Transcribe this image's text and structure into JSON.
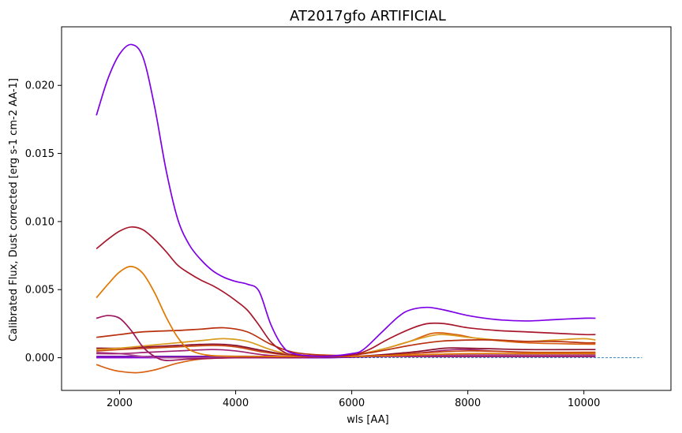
{
  "chart_data": {
    "type": "line",
    "title": "AT2017gfo ARTIFICIAL",
    "xlabel": "wls [AA]",
    "ylabel": "Calibrated Flux, Dust corrected [erg s-1 cm-2 AA-1]",
    "xlim": [
      1000,
      11500
    ],
    "ylim": [
      -0.0024,
      0.0243
    ],
    "xticks": [
      2000,
      4000,
      6000,
      8000,
      10000
    ],
    "yticks": [
      0.0,
      0.005,
      0.01,
      0.015,
      0.02
    ],
    "xtick_labels": [
      "2000",
      "4000",
      "6000",
      "8000",
      "10000"
    ],
    "ytick_labels": [
      "0.000",
      "0.005",
      "0.010",
      "0.015",
      "0.020"
    ],
    "grid": false,
    "legend": "none",
    "reference_line": {
      "y": 0.0,
      "x_range": [
        1600,
        11000
      ],
      "style": "dashed",
      "color": "#1f77b4"
    },
    "series": [
      {
        "color": "#7e00e6",
        "points": [
          [
            1600,
            0.0178
          ],
          [
            1800,
            0.0205
          ],
          [
            2000,
            0.0223
          ],
          [
            2200,
            0.023
          ],
          [
            2400,
            0.0221
          ],
          [
            2600,
            0.0185
          ],
          [
            2800,
            0.0138
          ],
          [
            3000,
            0.0102
          ],
          [
            3200,
            0.0083
          ],
          [
            3400,
            0.0072
          ],
          [
            3600,
            0.0064
          ],
          [
            3800,
            0.0059
          ],
          [
            4000,
            0.0056
          ],
          [
            4200,
            0.0054
          ],
          [
            4400,
            0.0049
          ],
          [
            4600,
            0.0025
          ],
          [
            4800,
            0.0009
          ],
          [
            5000,
            0.0003
          ],
          [
            5500,
            0.0001
          ],
          [
            6000,
            0.0003
          ],
          [
            6200,
            0.0006
          ],
          [
            6500,
            0.0018
          ],
          [
            6800,
            0.003
          ],
          [
            7000,
            0.0035
          ],
          [
            7300,
            0.0037
          ],
          [
            7600,
            0.0035
          ],
          [
            8000,
            0.0031
          ],
          [
            8500,
            0.0028
          ],
          [
            9000,
            0.0027
          ],
          [
            9500,
            0.0028
          ],
          [
            10000,
            0.0029
          ],
          [
            10200,
            0.0029
          ]
        ]
      },
      {
        "color": "#a8182c",
        "points": [
          [
            1600,
            0.008
          ],
          [
            1800,
            0.0087
          ],
          [
            2000,
            0.0093
          ],
          [
            2200,
            0.0096
          ],
          [
            2400,
            0.0094
          ],
          [
            2600,
            0.0087
          ],
          [
            2800,
            0.0078
          ],
          [
            3000,
            0.0068
          ],
          [
            3200,
            0.0062
          ],
          [
            3400,
            0.0057
          ],
          [
            3600,
            0.0053
          ],
          [
            3800,
            0.0048
          ],
          [
            4000,
            0.0042
          ],
          [
            4200,
            0.0035
          ],
          [
            4400,
            0.0024
          ],
          [
            4600,
            0.0012
          ],
          [
            4800,
            0.0005
          ],
          [
            5000,
            0.0002
          ],
          [
            5500,
            0.0001
          ],
          [
            6000,
            0.0002
          ],
          [
            6300,
            0.0006
          ],
          [
            6600,
            0.0013
          ],
          [
            7000,
            0.0021
          ],
          [
            7300,
            0.0025
          ],
          [
            7600,
            0.0025
          ],
          [
            8000,
            0.0022
          ],
          [
            8500,
            0.002
          ],
          [
            9000,
            0.0019
          ],
          [
            9500,
            0.0018
          ],
          [
            10000,
            0.0017
          ],
          [
            10200,
            0.0017
          ]
        ]
      },
      {
        "color": "#e07800",
        "points": [
          [
            1600,
            0.0044
          ],
          [
            1800,
            0.0054
          ],
          [
            2000,
            0.0063
          ],
          [
            2200,
            0.0067
          ],
          [
            2400,
            0.0062
          ],
          [
            2600,
            0.0048
          ],
          [
            2800,
            0.003
          ],
          [
            3000,
            0.0015
          ],
          [
            3200,
            0.0006
          ],
          [
            3500,
            0.0002
          ],
          [
            4000,
            0.0001
          ],
          [
            5000,
            0.0001
          ],
          [
            6000,
            0.0001
          ],
          [
            7000,
            0.0002
          ],
          [
            8000,
            0.0003
          ],
          [
            9000,
            0.0003
          ],
          [
            10200,
            0.0003
          ]
        ]
      },
      {
        "color": "#9c1660",
        "points": [
          [
            1600,
            0.0029
          ],
          [
            1800,
            0.0031
          ],
          [
            2000,
            0.0029
          ],
          [
            2200,
            0.002
          ],
          [
            2400,
            0.0008
          ],
          [
            2600,
            0.0001
          ],
          [
            2800,
            -0.0002
          ],
          [
            3200,
            -0.0001
          ],
          [
            4000,
            0.0
          ],
          [
            5000,
            0.0
          ],
          [
            6000,
            0.0001
          ],
          [
            7000,
            0.0001
          ],
          [
            8000,
            0.0001
          ],
          [
            9000,
            0.0001
          ],
          [
            10200,
            0.0001
          ]
        ]
      },
      {
        "color": "#b8300e",
        "points": [
          [
            1600,
            0.0015
          ],
          [
            2000,
            0.0017
          ],
          [
            2400,
            0.0019
          ],
          [
            3000,
            0.002
          ],
          [
            3400,
            0.0021
          ],
          [
            3800,
            0.0022
          ],
          [
            4200,
            0.0019
          ],
          [
            4600,
            0.001
          ],
          [
            5000,
            0.0004
          ],
          [
            5500,
            0.0002
          ],
          [
            6000,
            0.0002
          ],
          [
            6500,
            0.0005
          ],
          [
            7000,
            0.0009
          ],
          [
            7500,
            0.0012
          ],
          [
            8000,
            0.0013
          ],
          [
            8500,
            0.0013
          ],
          [
            9000,
            0.0012
          ],
          [
            9500,
            0.0012
          ],
          [
            10000,
            0.0011
          ],
          [
            10200,
            0.0011
          ]
        ]
      },
      {
        "color": "#d99a1e",
        "points": [
          [
            1600,
            0.0006
          ],
          [
            2000,
            0.0007
          ],
          [
            2500,
            0.0009
          ],
          [
            3000,
            0.0011
          ],
          [
            3500,
            0.0013
          ],
          [
            3800,
            0.0014
          ],
          [
            4200,
            0.0012
          ],
          [
            4600,
            0.0006
          ],
          [
            5000,
            0.0002
          ],
          [
            5500,
            0.0001
          ],
          [
            6000,
            0.0002
          ],
          [
            6500,
            0.0006
          ],
          [
            7000,
            0.0012
          ],
          [
            7500,
            0.0017
          ],
          [
            8000,
            0.0015
          ],
          [
            8500,
            0.0013
          ],
          [
            9000,
            0.0012
          ],
          [
            9500,
            0.0013
          ],
          [
            10000,
            0.0014
          ],
          [
            10200,
            0.0013
          ]
        ]
      },
      {
        "color": "#d86010",
        "points": [
          [
            1600,
            -0.0005
          ],
          [
            1800,
            -0.0008
          ],
          [
            2000,
            -0.001
          ],
          [
            2300,
            -0.0011
          ],
          [
            2600,
            -0.0009
          ],
          [
            3000,
            -0.0004
          ],
          [
            3400,
            -0.0001
          ],
          [
            4000,
            0.0
          ],
          [
            5000,
            0.0001
          ],
          [
            6000,
            0.0002
          ],
          [
            6500,
            0.0006
          ],
          [
            7000,
            0.0012
          ],
          [
            7400,
            0.0018
          ],
          [
            7800,
            0.0017
          ],
          [
            8200,
            0.0014
          ],
          [
            9000,
            0.0011
          ],
          [
            10000,
            0.001
          ],
          [
            10200,
            0.001
          ]
        ]
      },
      {
        "color": "#8a1030",
        "points": [
          [
            1600,
            0.0007
          ],
          [
            2000,
            0.0007
          ],
          [
            2500,
            0.0008
          ],
          [
            3000,
            0.0009
          ],
          [
            3600,
            0.001
          ],
          [
            4000,
            0.0009
          ],
          [
            4500,
            0.0005
          ],
          [
            5000,
            0.0002
          ],
          [
            6000,
            0.0001
          ],
          [
            7000,
            0.0004
          ],
          [
            7600,
            0.0007
          ],
          [
            8000,
            0.0007
          ],
          [
            9000,
            0.0006
          ],
          [
            10000,
            0.0006
          ],
          [
            10200,
            0.0006
          ]
        ]
      },
      {
        "color": "#c84a12",
        "points": [
          [
            1600,
            0.0005
          ],
          [
            2000,
            0.0006
          ],
          [
            2500,
            0.0007
          ],
          [
            3000,
            0.0008
          ],
          [
            3600,
            0.0009
          ],
          [
            4000,
            0.0008
          ],
          [
            4500,
            0.0004
          ],
          [
            5000,
            0.0002
          ],
          [
            6000,
            0.0001
          ],
          [
            7000,
            0.0003
          ],
          [
            8000,
            0.0005
          ],
          [
            9000,
            0.0004
          ],
          [
            10000,
            0.0004
          ],
          [
            10200,
            0.0004
          ]
        ]
      },
      {
        "color": "#a02070",
        "points": [
          [
            1600,
            0.0003
          ],
          [
            2000,
            0.0003
          ],
          [
            2500,
            0.0004
          ],
          [
            3000,
            0.0005
          ],
          [
            3600,
            0.0006
          ],
          [
            4000,
            0.0005
          ],
          [
            4500,
            0.0002
          ],
          [
            5000,
            0.0001
          ],
          [
            6000,
            0.0001
          ],
          [
            7000,
            0.0003
          ],
          [
            7800,
            0.0006
          ],
          [
            8400,
            0.0005
          ],
          [
            9000,
            0.0004
          ],
          [
            10000,
            0.0003
          ],
          [
            10200,
            0.0003
          ]
        ]
      },
      {
        "color": "#b05090",
        "points": [
          [
            1600,
            0.0004
          ],
          [
            2000,
            0.0003
          ],
          [
            2400,
            0.0001
          ],
          [
            2800,
            0.0
          ],
          [
            3200,
            0.0
          ],
          [
            4000,
            0.0
          ],
          [
            5000,
            0.0
          ],
          [
            6000,
            0.0001
          ],
          [
            7000,
            0.0002
          ],
          [
            8000,
            0.0002
          ],
          [
            9000,
            0.0002
          ],
          [
            10200,
            0.0002
          ]
        ]
      },
      {
        "color": "#6a0ab0",
        "points": [
          [
            1600,
            0.0001
          ],
          [
            2500,
            0.0001
          ],
          [
            3500,
            0.0001
          ],
          [
            4500,
            0.0001
          ],
          [
            5500,
            0.0
          ],
          [
            6500,
            0.0001
          ],
          [
            7500,
            0.0002
          ],
          [
            8500,
            0.0002
          ],
          [
            9500,
            0.0002
          ],
          [
            10200,
            0.0002
          ]
        ]
      },
      {
        "color": "#8a00d8",
        "points": [
          [
            1600,
            0.0
          ],
          [
            2500,
            0.0
          ],
          [
            3500,
            0.0
          ],
          [
            4500,
            0.0
          ],
          [
            5500,
            0.0
          ],
          [
            6500,
            0.0001
          ],
          [
            7500,
            0.0001
          ],
          [
            8500,
            0.0001
          ],
          [
            9500,
            0.0001
          ],
          [
            10200,
            0.0001
          ]
        ]
      }
    ]
  }
}
